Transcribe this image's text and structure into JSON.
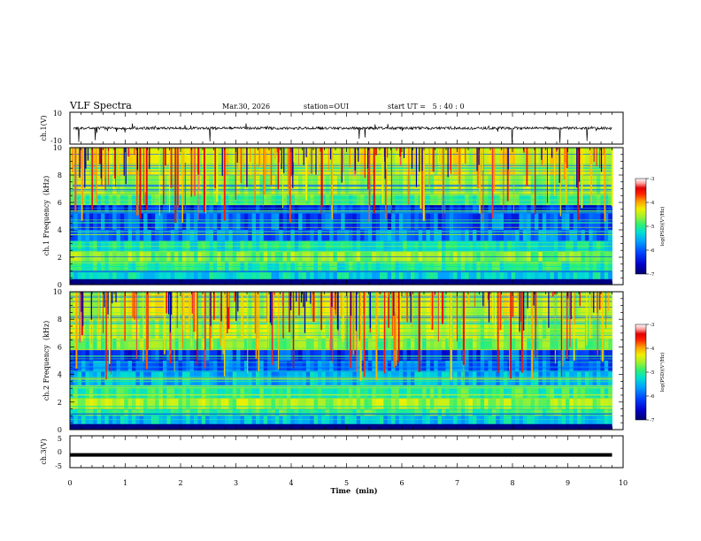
{
  "header": {
    "title": "VLF Spectra",
    "date": "Mar.30, 2026",
    "station": "station=OUI",
    "start_ut": "start UT =   5 : 40 : 0"
  },
  "colors": {
    "spectrogram_ramp": [
      "#00006e",
      "#0000c8",
      "#0040ff",
      "#00a0ff",
      "#00e0d0",
      "#30f070",
      "#a0f030",
      "#f0f000",
      "#ffa000",
      "#ff2000",
      "#e00000",
      "#ff9c9c",
      "#ffffff"
    ],
    "waveform": "#000000"
  },
  "chart_data": [
    {
      "type": "line",
      "name": "ch1-waveform",
      "ylabel": "ch.1(V)",
      "ylim": [
        -10,
        10
      ],
      "ytick_labels": [
        "10",
        "-10"
      ],
      "baseline": 0,
      "x_range_min": [
        0,
        9.8
      ],
      "note": "noisy waveform with spikes, amplitude ~ +/-1 V"
    },
    {
      "type": "heatmap",
      "name": "ch1-spectrogram",
      "ylabel": "ch.1 Frequency  (kHz)",
      "ylim": [
        0,
        10
      ],
      "ytick_labels": [
        "0",
        "2",
        "4",
        "6",
        "8",
        "10"
      ],
      "x_range_min": [
        0,
        9.8
      ],
      "colorbar": {
        "label": "log(PSD)(V²/Hz)",
        "range": [
          -7,
          -3
        ],
        "tick_labels": [
          "-3",
          "-4",
          "-5",
          "-6",
          "-7"
        ]
      }
    },
    {
      "type": "heatmap",
      "name": "ch2-spectrogram",
      "ylabel": "ch.2 Frequency  (kHz)",
      "ylim": [
        0,
        10
      ],
      "ytick_labels": [
        "0",
        "2",
        "4",
        "6",
        "8",
        "10"
      ],
      "x_range_min": [
        0,
        9.8
      ],
      "colorbar": {
        "label": "log(PSD)(V²/Hz)",
        "range": [
          -7,
          -3
        ],
        "tick_labels": [
          "-3",
          "-4",
          "-5",
          "-6",
          "-7"
        ]
      }
    },
    {
      "type": "line",
      "name": "ch3-waveform",
      "ylabel": "ch.3(V)",
      "ylim": [
        -5,
        5
      ],
      "ytick_labels": [
        "5",
        "0",
        "-5"
      ],
      "value": -1,
      "x_range_min": [
        0,
        9.8
      ]
    }
  ],
  "xaxis": {
    "label": "Time  (min)",
    "range": [
      0,
      10
    ],
    "tick_labels": [
      "0",
      "1",
      "2",
      "3",
      "4",
      "5",
      "6",
      "7",
      "8",
      "9",
      "10"
    ]
  }
}
